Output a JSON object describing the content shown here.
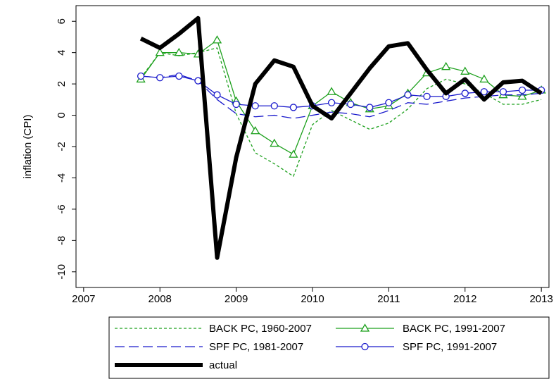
{
  "chart_data": {
    "type": "line",
    "ylabel": "inflation (CPI)",
    "x": [
      2007.75,
      2008,
      2008.25,
      2008.5,
      2008.75,
      2009,
      2009.25,
      2009.5,
      2009.75,
      2010,
      2010.25,
      2010.5,
      2010.75,
      2011,
      2011.25,
      2011.5,
      2011.75,
      2012,
      2012.25,
      2012.5,
      2012.75,
      2013
    ],
    "xlim": [
      2006.9,
      2013.1
    ],
    "xticks": [
      2007,
      2008,
      2009,
      2010,
      2011,
      2012,
      2013
    ],
    "ylim": [
      -11,
      7
    ],
    "yticks": [
      -10,
      -8,
      -6,
      -4,
      -2,
      0,
      2,
      4,
      6
    ],
    "grid": false,
    "legend": "bottom",
    "series": [
      {
        "name": "BACK PC, 1960-2007",
        "color": "#1ca01c",
        "dash": "4,3",
        "width": 1.3,
        "marker": "none",
        "values": [
          2.4,
          4.0,
          3.8,
          4.0,
          4.3,
          0.1,
          -2.4,
          -3.1,
          -3.9,
          -0.6,
          0.3,
          -0.3,
          -0.9,
          -0.5,
          0.4,
          1.7,
          2.3,
          2.0,
          1.4,
          0.7,
          0.7,
          1.0
        ]
      },
      {
        "name": "BACK PC, 1991-2007",
        "color": "#1ca01c",
        "dash": "none",
        "width": 1.3,
        "marker": "triangle",
        "values": [
          2.3,
          4.0,
          4.0,
          3.9,
          4.8,
          0.9,
          -1.0,
          -1.8,
          -2.5,
          0.6,
          1.5,
          0.8,
          0.4,
          0.6,
          1.4,
          2.7,
          3.1,
          2.8,
          2.3,
          1.3,
          1.2,
          1.6
        ]
      },
      {
        "name": "SPF PC, 1981-2007",
        "color": "#1a1acc",
        "dash": "14,6",
        "width": 1.3,
        "marker": "none",
        "values": [
          2.5,
          2.4,
          2.6,
          2.2,
          1.0,
          0.1,
          -0.1,
          0.0,
          -0.2,
          0.0,
          0.2,
          0.1,
          -0.1,
          0.3,
          0.8,
          0.7,
          0.9,
          1.1,
          1.2,
          1.3,
          1.3,
          1.4
        ]
      },
      {
        "name": "SPF PC, 1991-2007",
        "color": "#1a1acc",
        "dash": "none",
        "width": 1.3,
        "marker": "circle",
        "values": [
          2.5,
          2.4,
          2.5,
          2.2,
          1.3,
          0.7,
          0.6,
          0.6,
          0.5,
          0.6,
          0.8,
          0.7,
          0.5,
          0.8,
          1.3,
          1.2,
          1.2,
          1.4,
          1.5,
          1.5,
          1.6,
          1.6
        ]
      },
      {
        "name": "actual",
        "color": "#000000",
        "dash": "none",
        "width": 6,
        "marker": "none",
        "values": [
          4.9,
          4.3,
          5.2,
          6.2,
          -9.1,
          -2.7,
          2.0,
          3.5,
          3.1,
          0.6,
          -0.2,
          1.4,
          3.0,
          4.4,
          4.6,
          2.9,
          1.4,
          2.3,
          1.0,
          2.1,
          2.2,
          1.4
        ]
      }
    ]
  }
}
